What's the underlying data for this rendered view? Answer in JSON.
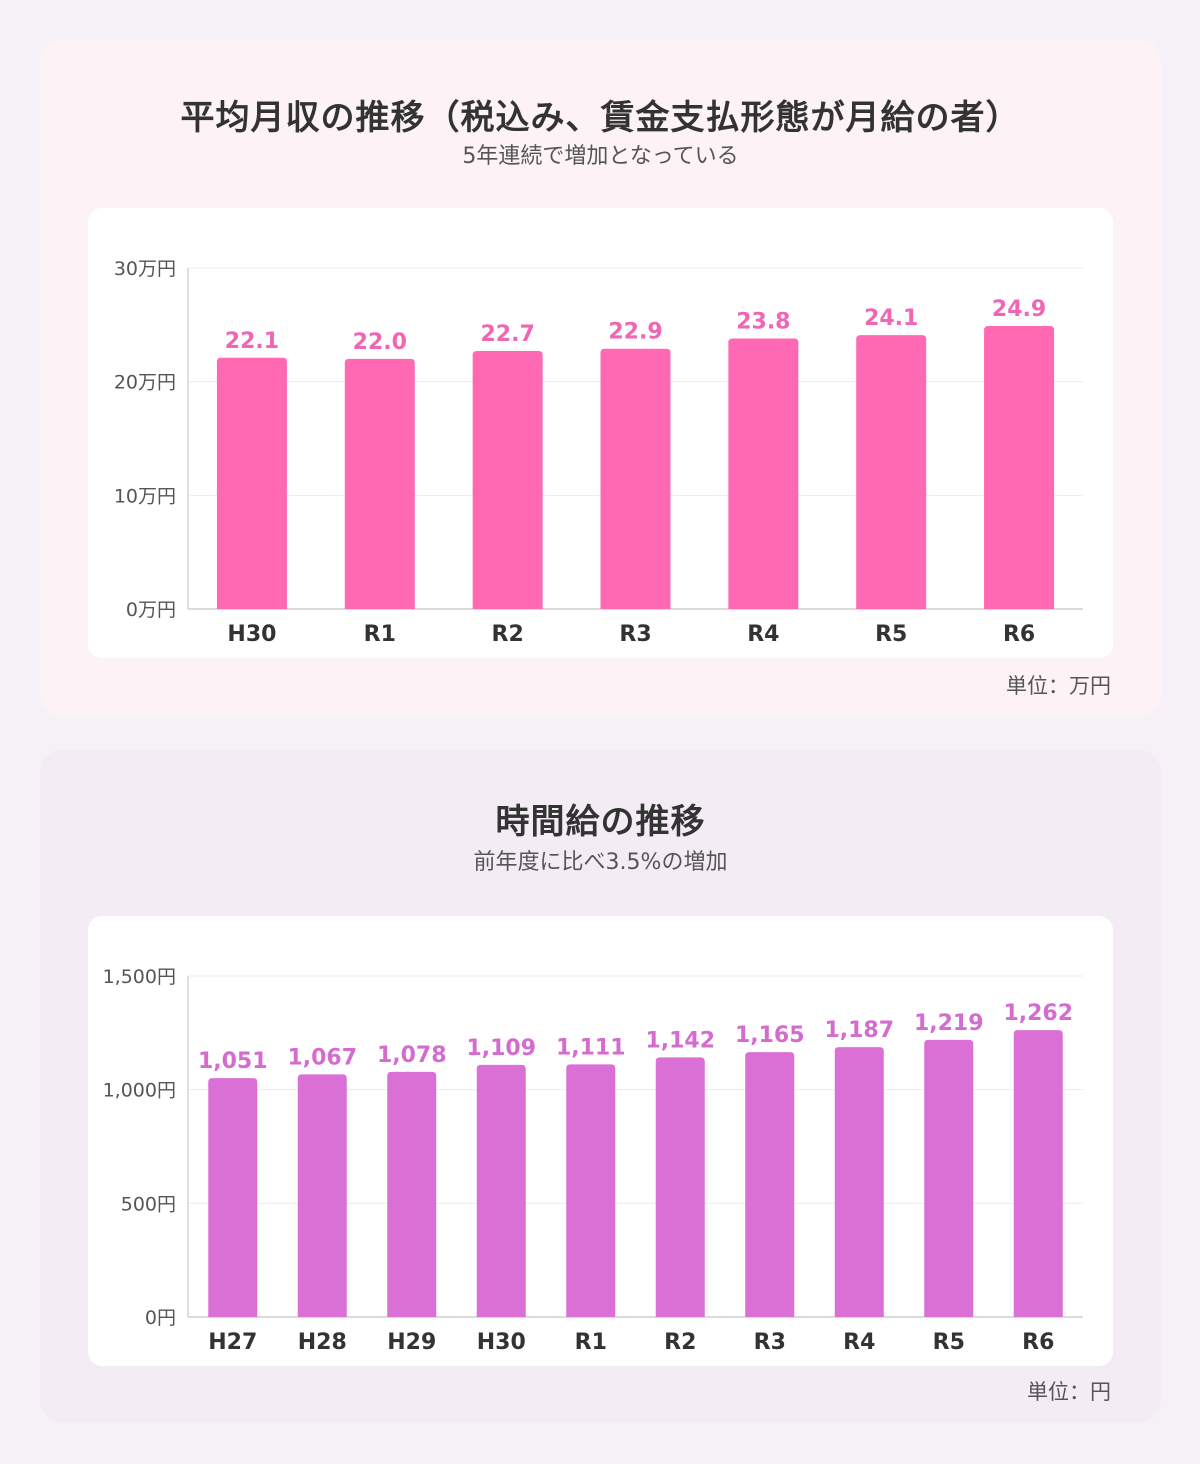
{
  "panels": [
    {
      "title": "平均月収の推移（税込み、賃金支払形態が月給の者）",
      "subtitle": "5年連続で増加となっている",
      "unit_note": "単位：万円"
    },
    {
      "title": "時間給の推移",
      "subtitle": "前年度に比べ3.5%の増加",
      "unit_note": "単位：円"
    }
  ],
  "chart_data": [
    {
      "type": "bar",
      "title": "平均月収の推移（税込み、賃金支払形態が月給の者）",
      "categories": [
        "H30",
        "R1",
        "R2",
        "R3",
        "R4",
        "R5",
        "R6"
      ],
      "values": [
        22.1,
        22.0,
        22.7,
        22.9,
        23.8,
        24.1,
        24.9
      ],
      "value_labels": [
        "22.1",
        "22.0",
        "22.7",
        "22.9",
        "23.8",
        "24.1",
        "24.9"
      ],
      "ylim": [
        0,
        30
      ],
      "yticks": [
        0,
        10,
        20,
        30
      ],
      "ytick_labels": [
        "0万円",
        "10万円",
        "20万円",
        "30万円"
      ],
      "xlabel": "",
      "ylabel": "",
      "grid": true,
      "bar_color": "#ff69b4",
      "label_color": "#f065b4"
    },
    {
      "type": "bar",
      "title": "時間給の推移",
      "categories": [
        "H27",
        "H28",
        "H29",
        "H30",
        "R1",
        "R2",
        "R3",
        "R4",
        "R5",
        "R6"
      ],
      "values": [
        1051,
        1067,
        1078,
        1109,
        1111,
        1142,
        1165,
        1187,
        1219,
        1262
      ],
      "value_labels": [
        "1,051",
        "1,067",
        "1,078",
        "1,109",
        "1,111",
        "1,142",
        "1,165",
        "1,187",
        "1,219",
        "1,262"
      ],
      "ylim": [
        0,
        1500
      ],
      "yticks": [
        0,
        500,
        1000,
        1500
      ],
      "ytick_labels": [
        "0円",
        "500円",
        "1,000円",
        "1,500円"
      ],
      "xlabel": "",
      "ylabel": "",
      "grid": true,
      "bar_color": "#da70d6",
      "label_color": "#d46cd0"
    }
  ]
}
